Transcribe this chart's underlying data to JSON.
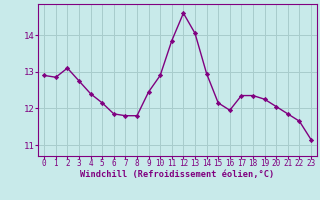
{
  "x": [
    0,
    1,
    2,
    3,
    4,
    5,
    6,
    7,
    8,
    9,
    10,
    11,
    12,
    13,
    14,
    15,
    16,
    17,
    18,
    19,
    20,
    21,
    22,
    23
  ],
  "y": [
    12.9,
    12.85,
    13.1,
    12.75,
    12.4,
    12.15,
    11.85,
    11.8,
    11.8,
    12.45,
    12.9,
    13.85,
    14.6,
    14.05,
    12.95,
    12.15,
    11.95,
    12.35,
    12.35,
    12.25,
    12.05,
    11.85,
    11.65,
    11.15
  ],
  "line_color": "#800080",
  "marker_color": "#800080",
  "bg_color": "#c8eaea",
  "grid_color": "#a8cccc",
  "axis_color": "#800080",
  "tick_color": "#800080",
  "xlabel": "Windchill (Refroidissement éolien,°C)",
  "ylim": [
    10.7,
    14.85
  ],
  "yticks": [
    11,
    12,
    13,
    14
  ],
  "xlim": [
    -0.5,
    23.5
  ],
  "xticks": [
    0,
    1,
    2,
    3,
    4,
    5,
    6,
    7,
    8,
    9,
    10,
    11,
    12,
    13,
    14,
    15,
    16,
    17,
    18,
    19,
    20,
    21,
    22,
    23
  ],
  "font_family": "monospace",
  "xlabel_fontsize": 6.2,
  "xtick_fontsize": 5.5,
  "ytick_fontsize": 6.5,
  "linewidth": 1.0,
  "markersize": 2.2
}
